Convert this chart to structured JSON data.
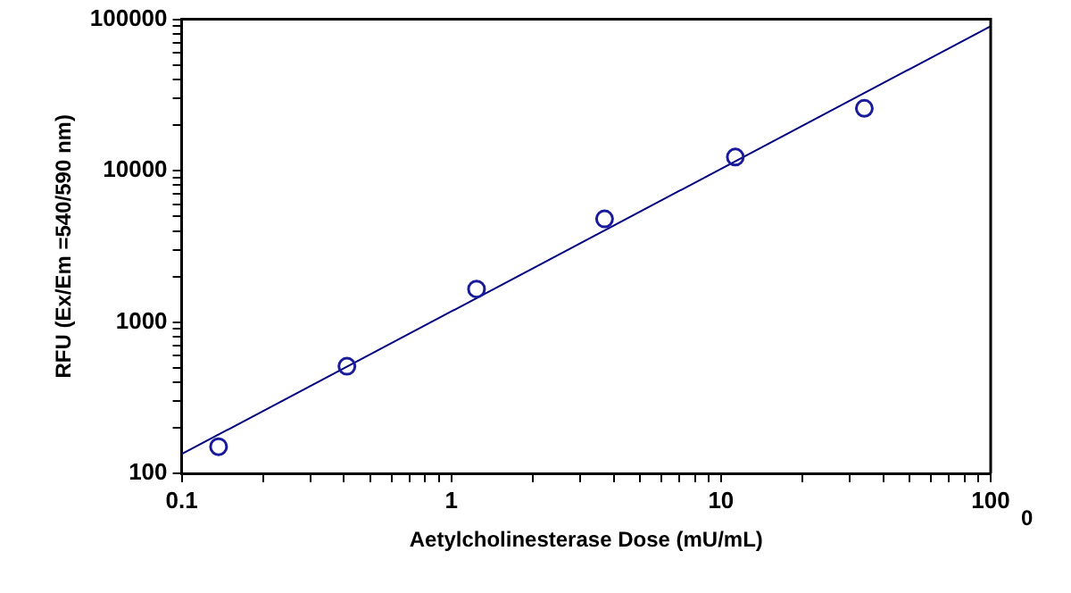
{
  "chart_data": {
    "type": "scatter",
    "xlabel": "Aetylcholinesterase Dose (mU/mL)",
    "ylabel": "RFU (Ex/Em =540/590 nm)",
    "annotations": [
      "0"
    ],
    "log": "xy",
    "grid": false,
    "legend": false,
    "marker": "circle",
    "xlim": [
      0.1,
      100
    ],
    "ylim": [
      100,
      100000
    ],
    "xticks": [
      0.1,
      {
        "value": 0.2,
        "label": null
      },
      {
        "value": 0.3,
        "label": null
      },
      {
        "value": 0.4,
        "label": null
      },
      {
        "value": 0.5,
        "label": null
      },
      {
        "value": 0.6,
        "label": null
      },
      {
        "value": 0.7,
        "label": null
      },
      {
        "value": 0.8,
        "label": null
      },
      {
        "value": 0.9,
        "label": null
      },
      1,
      {
        "value": 2,
        "label": null
      },
      {
        "value": 3,
        "label": null
      },
      {
        "value": 4,
        "label": null
      },
      {
        "value": 5,
        "label": null
      },
      {
        "value": 6,
        "label": null
      },
      {
        "value": 7,
        "label": null
      },
      {
        "value": 8,
        "label": null
      },
      {
        "value": 9,
        "label": null
      },
      10,
      {
        "value": 20,
        "label": null
      },
      {
        "value": 30,
        "label": null
      },
      {
        "value": 40,
        "label": null
      },
      {
        "value": 50,
        "label": null
      },
      {
        "value": 60,
        "label": null
      },
      {
        "value": 70,
        "label": null
      },
      {
        "value": 80,
        "label": null
      },
      {
        "value": 90,
        "label": null
      },
      100
    ],
    "yticks": [
      100,
      {
        "value": 200,
        "label": null
      },
      {
        "value": 300,
        "label": null
      },
      {
        "value": 400,
        "label": null
      },
      {
        "value": 500,
        "label": null
      },
      {
        "value": 600,
        "label": null
      },
      {
        "value": 700,
        "label": null
      },
      {
        "value": 800,
        "label": null
      },
      {
        "value": 900,
        "label": null
      },
      1000,
      {
        "value": 2000,
        "label": null
      },
      {
        "value": 3000,
        "label": null
      },
      {
        "value": 4000,
        "label": null
      },
      {
        "value": 5000,
        "label": null
      },
      {
        "value": 6000,
        "label": null
      },
      {
        "value": 7000,
        "label": null
      },
      {
        "value": 8000,
        "label": null
      },
      {
        "value": 9000,
        "label": null
      },
      10000,
      {
        "value": 20000,
        "label": null
      },
      {
        "value": 30000,
        "label": null
      },
      {
        "value": 40000,
        "label": null
      },
      {
        "value": 50000,
        "label": null
      },
      {
        "value": 60000,
        "label": null
      },
      {
        "value": 70000,
        "label": null
      },
      {
        "value": 80000,
        "label": null
      },
      {
        "value": 90000,
        "label": null
      },
      100000
    ],
    "series": [
      {
        "color": "#1a1a9c",
        "x": [
          0.137,
          0.41,
          1.24,
          3.7,
          11.3,
          34
        ],
        "values": [
          150,
          510,
          1650,
          4800,
          12300,
          25800
        ]
      },
      {
        "type": "line",
        "color": "#000080",
        "marker": "none",
        "x": [
          0.1,
          100
        ],
        "values": [
          134,
          90000
        ]
      }
    ]
  }
}
